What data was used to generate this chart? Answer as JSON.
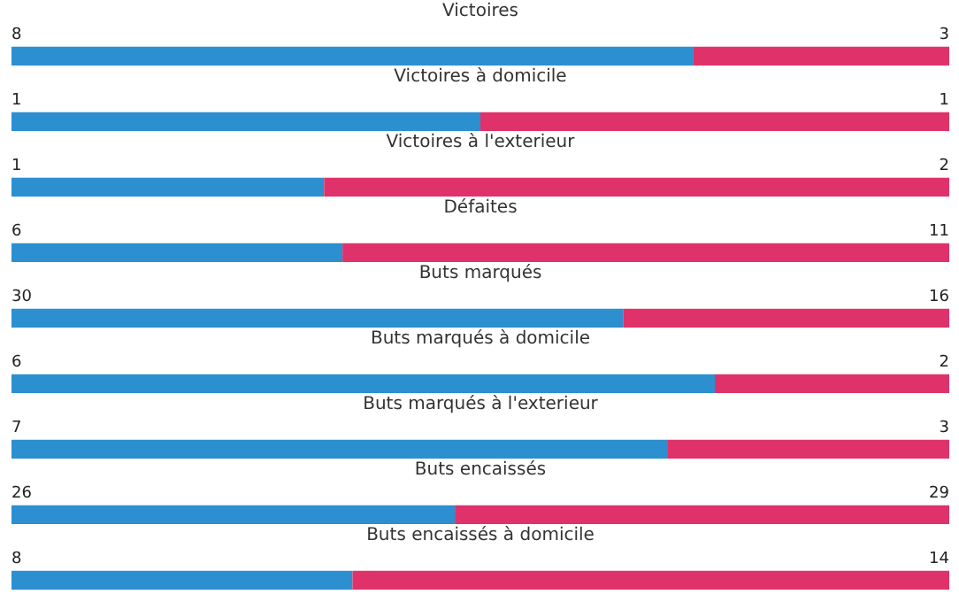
{
  "chart_data": [
    {
      "type": "bar",
      "orientation": "horizontal",
      "stacked": true,
      "data_labels": true,
      "grid": false,
      "tick_labels": false,
      "title": "Victoires",
      "categories": [
        null
      ],
      "xlim": [
        0,
        11
      ],
      "series": [
        {
          "color": "#2b8fd0",
          "values": [
            8
          ]
        },
        {
          "color": "#e0326a",
          "values": [
            3
          ]
        }
      ]
    },
    {
      "type": "bar",
      "orientation": "horizontal",
      "stacked": true,
      "data_labels": true,
      "grid": false,
      "tick_labels": false,
      "title": "Victoires à domicile",
      "categories": [
        null
      ],
      "xlim": [
        0,
        2
      ],
      "series": [
        {
          "color": "#2b8fd0",
          "values": [
            1
          ]
        },
        {
          "color": "#e0326a",
          "values": [
            1
          ]
        }
      ]
    },
    {
      "type": "bar",
      "orientation": "horizontal",
      "stacked": true,
      "data_labels": true,
      "grid": false,
      "tick_labels": false,
      "title": "Victoires à l'exterieur",
      "categories": [
        null
      ],
      "xlim": [
        0,
        3
      ],
      "series": [
        {
          "color": "#2b8fd0",
          "values": [
            1
          ]
        },
        {
          "color": "#e0326a",
          "values": [
            2
          ]
        }
      ]
    },
    {
      "type": "bar",
      "orientation": "horizontal",
      "stacked": true,
      "data_labels": true,
      "grid": false,
      "tick_labels": false,
      "title": "Défaites",
      "categories": [
        null
      ],
      "xlim": [
        0,
        17
      ],
      "series": [
        {
          "color": "#2b8fd0",
          "values": [
            6
          ]
        },
        {
          "color": "#e0326a",
          "values": [
            11
          ]
        }
      ]
    },
    {
      "type": "bar",
      "orientation": "horizontal",
      "stacked": true,
      "data_labels": true,
      "grid": false,
      "tick_labels": false,
      "title": "Buts marqués",
      "categories": [
        null
      ],
      "xlim": [
        0,
        46
      ],
      "series": [
        {
          "color": "#2b8fd0",
          "values": [
            30
          ]
        },
        {
          "color": "#e0326a",
          "values": [
            16
          ]
        }
      ]
    },
    {
      "type": "bar",
      "orientation": "horizontal",
      "stacked": true,
      "data_labels": true,
      "grid": false,
      "tick_labels": false,
      "title": "Buts marqués à domicile",
      "categories": [
        null
      ],
      "xlim": [
        0,
        8
      ],
      "series": [
        {
          "color": "#2b8fd0",
          "values": [
            6
          ]
        },
        {
          "color": "#e0326a",
          "values": [
            2
          ]
        }
      ]
    },
    {
      "type": "bar",
      "orientation": "horizontal",
      "stacked": true,
      "data_labels": true,
      "grid": false,
      "tick_labels": false,
      "title": "Buts marqués à l'exterieur",
      "categories": [
        null
      ],
      "xlim": [
        0,
        10
      ],
      "series": [
        {
          "color": "#2b8fd0",
          "values": [
            7
          ]
        },
        {
          "color": "#e0326a",
          "values": [
            3
          ]
        }
      ]
    },
    {
      "type": "bar",
      "orientation": "horizontal",
      "stacked": true,
      "data_labels": true,
      "grid": false,
      "tick_labels": false,
      "title": "Buts encaissés",
      "categories": [
        null
      ],
      "xlim": [
        0,
        55
      ],
      "series": [
        {
          "color": "#2b8fd0",
          "values": [
            26
          ]
        },
        {
          "color": "#e0326a",
          "values": [
            29
          ]
        }
      ]
    },
    {
      "type": "bar",
      "orientation": "horizontal",
      "stacked": true,
      "data_labels": true,
      "grid": false,
      "tick_labels": false,
      "title": "Buts encaissés à domicile",
      "categories": [
        null
      ],
      "xlim": [
        0,
        22
      ],
      "series": [
        {
          "color": "#2b8fd0",
          "values": [
            8
          ]
        },
        {
          "color": "#e0326a",
          "values": [
            14
          ]
        }
      ]
    }
  ]
}
